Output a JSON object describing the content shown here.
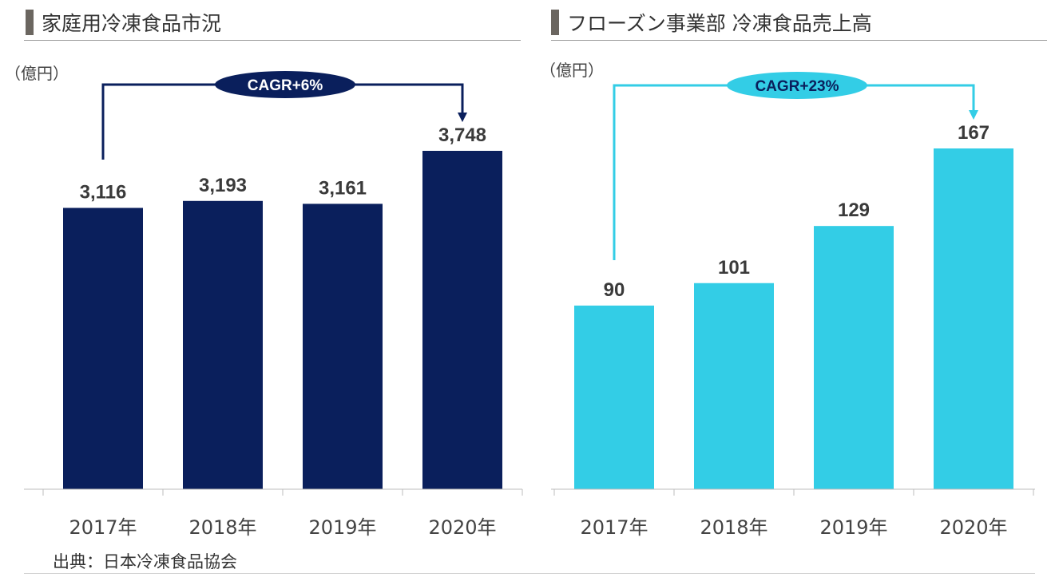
{
  "source": "出典：日本冷凍食品協会",
  "chart_data": [
    {
      "type": "bar",
      "title": "家庭用冷凍食品市況",
      "ylabel": "（億円）",
      "categories": [
        "2017年",
        "2018年",
        "2019年",
        "2020年"
      ],
      "values": [
        3116,
        3193,
        3161,
        3748
      ],
      "data_labels": [
        "3,116",
        "3,193",
        "3,161",
        "3,748"
      ],
      "ylim": [
        0,
        3748
      ],
      "annotation": "CAGR+6%",
      "bar_color": "#0a1f5c",
      "grid": false
    },
    {
      "type": "bar",
      "title": "フローズン事業部 冷凍食品売上高",
      "ylabel": "（億円）",
      "categories": [
        "2017年",
        "2018年",
        "2019年",
        "2020年"
      ],
      "values": [
        90,
        101,
        129,
        167
      ],
      "data_labels": [
        "90",
        "101",
        "129",
        "167"
      ],
      "ylim": [
        0,
        167
      ],
      "annotation": "CAGR+23%",
      "bar_color": "#33cde6",
      "grid": false
    }
  ]
}
